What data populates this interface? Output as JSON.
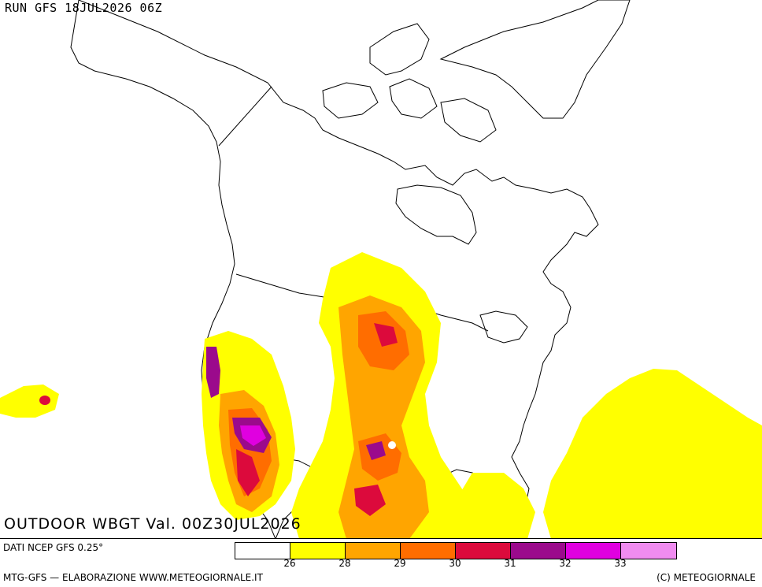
{
  "header": {
    "run_label": "RUN GFS 18JUL2026 06Z"
  },
  "map": {
    "title": "OUTDOOR WBGT Val. 00Z30JUL2026",
    "region": "North America"
  },
  "legend": {
    "colors": [
      "#ffffff",
      "#ffff00",
      "#ffa500",
      "#ff6d00",
      "#dc0a3c",
      "#9b0a8c",
      "#e000e0",
      "#f08cf0"
    ],
    "ticks": [
      "26",
      "28",
      "29",
      "30",
      "31",
      "32",
      "33"
    ]
  },
  "footer": {
    "data_source": "DATI NCEP GFS 0.25°",
    "credit": "MTG-GFS — ELABORAZIONE WWW.METEOGIORNALE.IT",
    "copyright": "(C) METEOGIORNALE"
  }
}
